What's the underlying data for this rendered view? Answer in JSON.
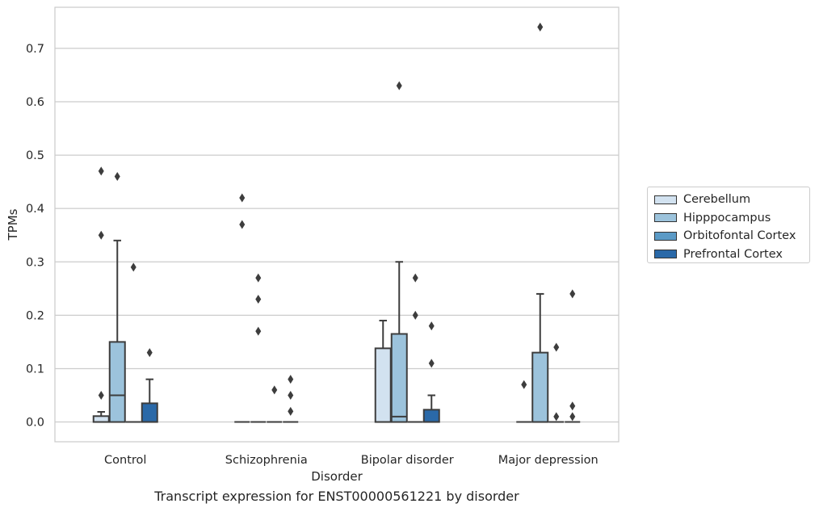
{
  "chart_data": {
    "type": "box",
    "title": "",
    "xlabel": "Disorder",
    "ylabel": "TPMs",
    "ylim": [
      -0.037,
      0.777
    ],
    "yticks": [
      0.0,
      0.1,
      0.2,
      0.3,
      0.4,
      0.5,
      0.6,
      0.7
    ],
    "ytick_labels": [
      "0.0",
      "0.1",
      "0.2",
      "0.3",
      "0.4",
      "0.5",
      "0.6",
      "0.7"
    ],
    "grid": true,
    "legend_position": "right",
    "categories": [
      "Control",
      "Schizophrenia",
      "Bipolar disorder",
      "Major depression"
    ],
    "series": [
      {
        "name": "Cerebellum",
        "color": "#d2e2f0",
        "boxes": [
          {
            "q1": 0.0,
            "median": 0.0,
            "q3": 0.011,
            "whisker_low": 0.0,
            "whisker_high": 0.019,
            "outliers": [
              0.05,
              0.35,
              0.47
            ]
          },
          {
            "q1": 0.0,
            "median": 0.0,
            "q3": 0.0,
            "whisker_low": 0.0,
            "whisker_high": 0.0,
            "outliers": [
              0.37,
              0.42
            ]
          },
          {
            "q1": 0.0,
            "median": 0.0,
            "q3": 0.138,
            "whisker_low": 0.0,
            "whisker_high": 0.19,
            "outliers": []
          },
          {
            "q1": 0.0,
            "median": 0.0,
            "q3": 0.0,
            "whisker_low": 0.0,
            "whisker_high": 0.0,
            "outliers": [
              0.07
            ]
          }
        ]
      },
      {
        "name": "Hipppocampus",
        "color": "#9cc3dc",
        "boxes": [
          {
            "q1": 0.0,
            "median": 0.05,
            "q3": 0.15,
            "whisker_low": 0.0,
            "whisker_high": 0.34,
            "outliers": [
              0.46
            ]
          },
          {
            "q1": 0.0,
            "median": 0.0,
            "q3": 0.0,
            "whisker_low": 0.0,
            "whisker_high": 0.0,
            "outliers": [
              0.17,
              0.23,
              0.27
            ]
          },
          {
            "q1": 0.0,
            "median": 0.01,
            "q3": 0.165,
            "whisker_low": 0.0,
            "whisker_high": 0.3,
            "outliers": [
              0.63
            ]
          },
          {
            "q1": 0.0,
            "median": 0.0,
            "q3": 0.13,
            "whisker_low": 0.0,
            "whisker_high": 0.24,
            "outliers": [
              0.74
            ]
          }
        ]
      },
      {
        "name": "Orbitofontal Cortex",
        "color": "#5b9ac6",
        "boxes": [
          {
            "q1": 0.0,
            "median": 0.0,
            "q3": 0.0,
            "whisker_low": 0.0,
            "whisker_high": 0.0,
            "outliers": [
              0.29
            ]
          },
          {
            "q1": 0.0,
            "median": 0.0,
            "q3": 0.0,
            "whisker_low": 0.0,
            "whisker_high": 0.0,
            "outliers": [
              0.06
            ]
          },
          {
            "q1": 0.0,
            "median": 0.0,
            "q3": 0.0,
            "whisker_low": 0.0,
            "whisker_high": 0.0,
            "outliers": [
              0.2,
              0.27
            ]
          },
          {
            "q1": 0.0,
            "median": 0.0,
            "q3": 0.0,
            "whisker_low": 0.0,
            "whisker_high": 0.0,
            "outliers": [
              0.01,
              0.14
            ]
          }
        ]
      },
      {
        "name": "Prefrontal Cortex",
        "color": "#2a69a8",
        "boxes": [
          {
            "q1": 0.0,
            "median": 0.0,
            "q3": 0.035,
            "whisker_low": 0.0,
            "whisker_high": 0.08,
            "outliers": [
              0.13
            ]
          },
          {
            "q1": 0.0,
            "median": 0.0,
            "q3": 0.0,
            "whisker_low": 0.0,
            "whisker_high": 0.0,
            "outliers": [
              0.02,
              0.05,
              0.08
            ]
          },
          {
            "q1": 0.0,
            "median": 0.0,
            "q3": 0.023,
            "whisker_low": 0.0,
            "whisker_high": 0.05,
            "outliers": [
              0.11,
              0.18
            ]
          },
          {
            "q1": 0.0,
            "median": 0.0,
            "q3": 0.0,
            "whisker_low": 0.0,
            "whisker_high": 0.0,
            "outliers": [
              0.01,
              0.03,
              0.24
            ]
          }
        ]
      }
    ]
  },
  "caption": "Transcript expression for ENST00000561221 by disorder"
}
